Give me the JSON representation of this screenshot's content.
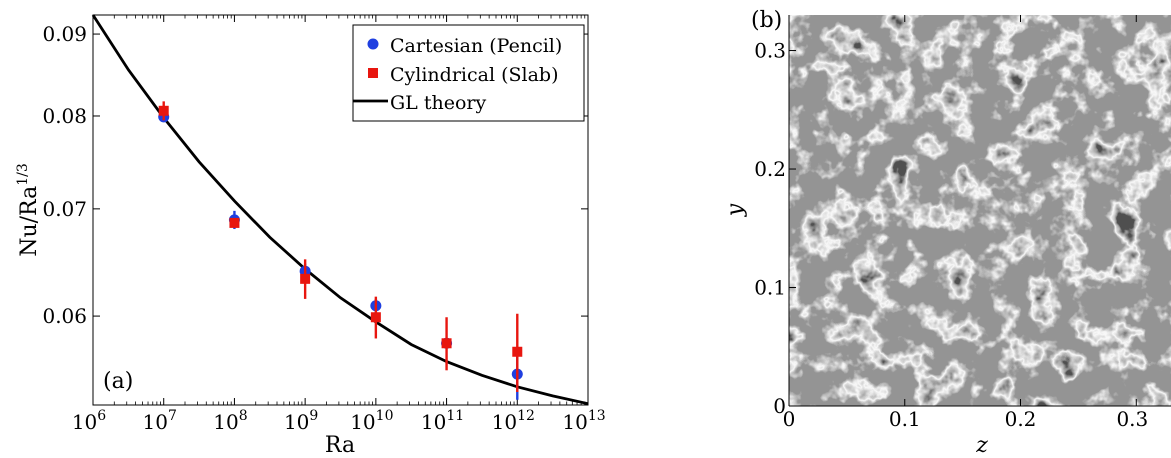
{
  "panels": {
    "left": {
      "label": "(a)",
      "xlabel": "Ra",
      "ylabel_base": "Nu/Ra",
      "ylabel_exp": "1/3"
    },
    "right": {
      "label": "(b)",
      "xlabel": "z",
      "ylabel": "y"
    }
  },
  "chart_data": [
    {
      "type": "scatter",
      "panel": "(a)",
      "xlabel": "Ra",
      "ylabel": "Nu/Ra^{1/3}",
      "xscale": "log",
      "yscale": "log",
      "xlim": [
        1000000,
        10000000000000
      ],
      "ylim": [
        0.0528,
        0.0925
      ],
      "x_ticks": [
        {
          "value": 1000000,
          "base": "10",
          "exp": "6"
        },
        {
          "value": 10000000,
          "base": "10",
          "exp": "7"
        },
        {
          "value": 100000000,
          "base": "10",
          "exp": "8"
        },
        {
          "value": 1000000000,
          "base": "10",
          "exp": "9"
        },
        {
          "value": 10000000000,
          "base": "10",
          "exp": "10"
        },
        {
          "value": 100000000000,
          "base": "10",
          "exp": "11"
        },
        {
          "value": 1000000000000,
          "base": "10",
          "exp": "12"
        },
        {
          "value": 10000000000000,
          "base": "10",
          "exp": "13"
        }
      ],
      "y_ticks": [
        {
          "value": 0.06,
          "label": "0.06"
        },
        {
          "value": 0.07,
          "label": "0.07"
        },
        {
          "value": 0.08,
          "label": "0.08"
        },
        {
          "value": 0.09,
          "label": "0.09"
        }
      ],
      "legend_position": "top-right",
      "series": [
        {
          "name": "Cartesian (Pencil)",
          "marker": "circle",
          "color": "#1f3fe0",
          "x": [
            10000000,
            100000000,
            1000000000,
            10000000000,
            100000000000,
            1000000000000
          ],
          "y": [
            0.0799,
            0.0689,
            0.064,
            0.0609,
            0.0577,
            0.0552
          ],
          "err": [
            0.0006,
            0.0009,
            0.0007,
            0.0006,
            0.0004,
            0.002
          ]
        },
        {
          "name": "Cylindrical (Slab)",
          "marker": "square",
          "color": "#e8160f",
          "x": [
            10000000,
            100000000,
            1000000000,
            10000000000,
            100000000000,
            1000000000000
          ],
          "y": [
            0.0806,
            0.0686,
            0.0633,
            0.0599,
            0.0577,
            0.057
          ],
          "err": [
            0.0011,
            0.0003,
            0.0018,
            0.0018,
            0.0022,
            0.0032
          ]
        },
        {
          "name": "GL theory",
          "marker": "line",
          "color": "#000000",
          "x": [
            1000000,
            3162278,
            10000000,
            31622777,
            100000000,
            316227766,
            1000000000,
            3162277660,
            10000000000,
            31622776602,
            100000000000,
            316227766017,
            1000000000000,
            3162277660168,
            10000000000000
          ],
          "y": [
            0.0925,
            0.0855,
            0.0798,
            0.0749,
            0.0708,
            0.0672,
            0.0642,
            0.0616,
            0.0595,
            0.0576,
            0.0562,
            0.0551,
            0.0542,
            0.0535,
            0.0529
          ]
        }
      ]
    },
    {
      "type": "heatmap",
      "panel": "(b)",
      "xlabel": "z",
      "ylabel": "y",
      "xlim": [
        0,
        0.33
      ],
      "ylim": [
        0,
        0.33
      ],
      "x_ticks": [
        {
          "value": 0,
          "label": "0"
        },
        {
          "value": 0.1,
          "label": "0.1"
        },
        {
          "value": 0.2,
          "label": "0.2"
        },
        {
          "value": 0.3,
          "label": "0.3"
        }
      ],
      "y_ticks": [
        {
          "value": 0,
          "label": "0"
        },
        {
          "value": 0.1,
          "label": "0.1"
        },
        {
          "value": 0.2,
          "label": "0.2"
        },
        {
          "value": 0.3,
          "label": "0.3"
        }
      ],
      "colormap": "grayscale"
    }
  ]
}
